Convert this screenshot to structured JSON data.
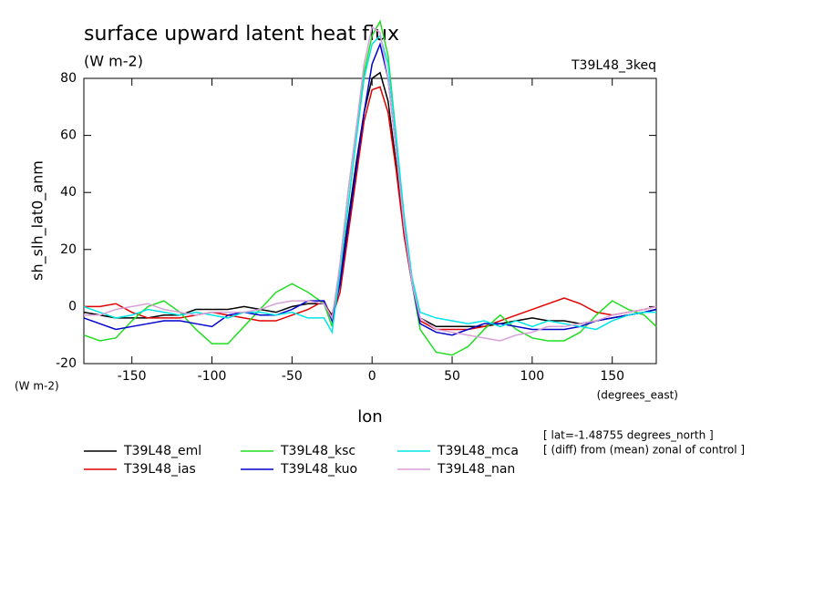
{
  "chart_data": {
    "type": "line",
    "title": "surface upward latent heat flux",
    "subtitle": "(W m-2)",
    "run_label": "T39L48_3keq",
    "y_label": "sh_slh_lat0_anm",
    "y_units": "(W m-2)",
    "x_label": "lon",
    "x_units": "(degrees_east)",
    "annotations": [
      "[ lat=-1.48755 degrees_north ]",
      "[ (diff) from (mean) zonal of control ]"
    ],
    "xlim": [
      -180,
      177.5
    ],
    "ylim": [
      -20,
      80
    ],
    "xticks": [
      -150,
      -100,
      -50,
      0,
      50,
      100,
      150
    ],
    "yticks": [
      -20,
      0,
      20,
      40,
      60,
      80
    ],
    "x": [
      -180,
      -170,
      -160,
      -150,
      -140,
      -130,
      -120,
      -110,
      -100,
      -90,
      -80,
      -70,
      -60,
      -50,
      -40,
      -30,
      -25,
      -20,
      -15,
      -10,
      -5,
      0,
      5,
      10,
      15,
      20,
      25,
      30,
      40,
      50,
      60,
      70,
      80,
      90,
      100,
      110,
      120,
      130,
      140,
      150,
      160,
      170,
      177.5
    ],
    "series": [
      {
        "name": "T39L48_eml",
        "color": "#000000",
        "values": [
          -2,
          -3,
          -4,
          -4,
          -4,
          -3,
          -3,
          -1,
          -1,
          -1,
          0,
          -1,
          -2,
          0,
          1,
          1,
          -3,
          10,
          30,
          50,
          68,
          80,
          82,
          72,
          50,
          25,
          8,
          -4,
          -7,
          -7,
          -7,
          -7,
          -6,
          -5,
          -4,
          -5,
          -5,
          -6,
          -5,
          -4,
          -3,
          -2,
          -1
        ]
      },
      {
        "name": "T39L48_ias",
        "color": "#e00000",
        "values": [
          0,
          0,
          1,
          -2,
          -4,
          -4,
          -4,
          -3,
          -2,
          -3,
          -4,
          -5,
          -5,
          -3,
          -1,
          2,
          -4,
          5,
          25,
          45,
          65,
          76,
          77,
          68,
          48,
          25,
          8,
          -5,
          -8,
          -8,
          -8,
          -7,
          -5,
          -3,
          -1,
          1,
          3,
          1,
          -2,
          -3,
          -2,
          -1,
          0
        ]
      },
      {
        "name": "T39L48_ksc",
        "color": "#22dd22",
        "values": [
          -10,
          -12,
          -11,
          -5,
          0,
          2,
          -2,
          -8,
          -13,
          -13,
          -7,
          -1,
          5,
          8,
          5,
          1,
          -7,
          15,
          40,
          62,
          82,
          95,
          100,
          88,
          60,
          30,
          8,
          -8,
          -16,
          -17,
          -14,
          -8,
          -3,
          -8,
          -11,
          -12,
          -12,
          -9,
          -3,
          2,
          -1,
          -3,
          -7
        ]
      },
      {
        "name": "T39L48_kuo",
        "color": "#0000cc",
        "values": [
          -4,
          -6,
          -8,
          -7,
          -6,
          -5,
          -5,
          -6,
          -7,
          -3,
          -2,
          -3,
          -3,
          -1,
          2,
          2,
          -5,
          8,
          28,
          48,
          68,
          85,
          92,
          80,
          55,
          28,
          8,
          -6,
          -9,
          -10,
          -8,
          -6,
          -6,
          -7,
          -8,
          -8,
          -8,
          -7,
          -5,
          -4,
          -3,
          -2,
          -1
        ]
      },
      {
        "name": "T39L48_mca",
        "color": "#00e5e5",
        "values": [
          0,
          -2,
          -4,
          -3,
          -1,
          -2,
          -3,
          -2,
          -3,
          -4,
          -2,
          -2,
          -3,
          -2,
          -4,
          -4,
          -9,
          12,
          35,
          58,
          80,
          92,
          95,
          85,
          60,
          32,
          10,
          -2,
          -4,
          -5,
          -6,
          -5,
          -7,
          -5,
          -7,
          -5,
          -6,
          -7,
          -8,
          -5,
          -3,
          -2,
          -2
        ]
      },
      {
        "name": "T39L48_nan",
        "color": "#d8a0d8",
        "values": [
          -3,
          -3,
          -1,
          0,
          1,
          -1,
          -2,
          -3,
          -2,
          -2,
          -2,
          -1,
          1,
          2,
          2,
          1,
          -4,
          15,
          40,
          62,
          85,
          98,
          96,
          80,
          55,
          28,
          8,
          -4,
          -8,
          -9,
          -10,
          -11,
          -12,
          -10,
          -9,
          -7,
          -7,
          -6,
          -5,
          -3,
          -2,
          -1,
          0
        ]
      }
    ]
  }
}
